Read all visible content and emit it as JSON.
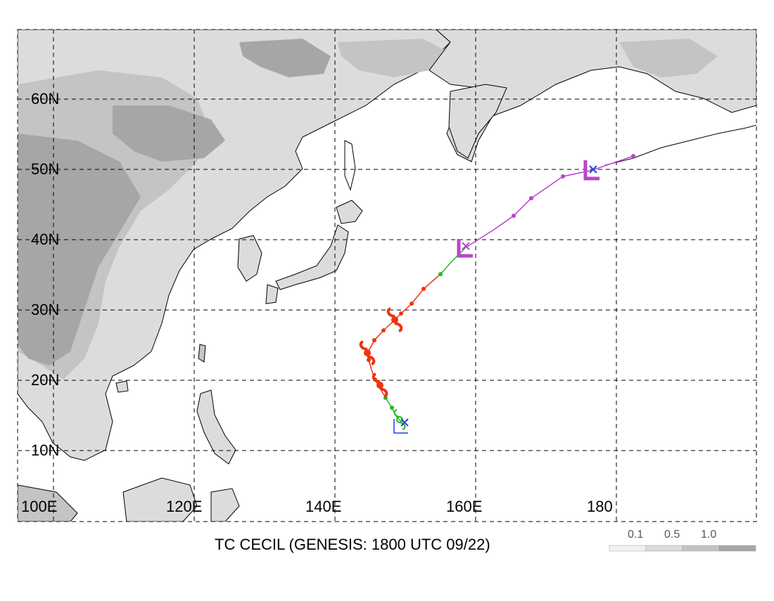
{
  "map": {
    "title": "TC CECIL (GENESIS: 1800 UTC 09/22)",
    "lat_labels": [
      "60N",
      "50N",
      "40N",
      "30N",
      "20N",
      "10N"
    ],
    "lon_labels": [
      "100E",
      "120E",
      "140E",
      "160E",
      "180"
    ],
    "legend": {
      "labels": [
        "0.1",
        "0.5",
        "1.0"
      ],
      "shades": [
        "#f2f2f2",
        "#dcdcdc",
        "#c4c4c4",
        "#a6a6a6"
      ]
    },
    "colors": {
      "land_light": "#dcdcdc",
      "land_mid": "#c4c4c4",
      "land_dark": "#a6a6a6",
      "tropical_storm_track": "#22bb22",
      "typhoon_track": "#ee3311",
      "extratropical_track": "#bb44cc",
      "genesis_marker": "#2244dd",
      "coastline": "#000000",
      "grid": "#000000"
    },
    "track_legend_symbols": [
      "typhoon-icon",
      "tropical-storm-icon",
      "low-marker-icon",
      "cross-marker-icon"
    ]
  }
}
